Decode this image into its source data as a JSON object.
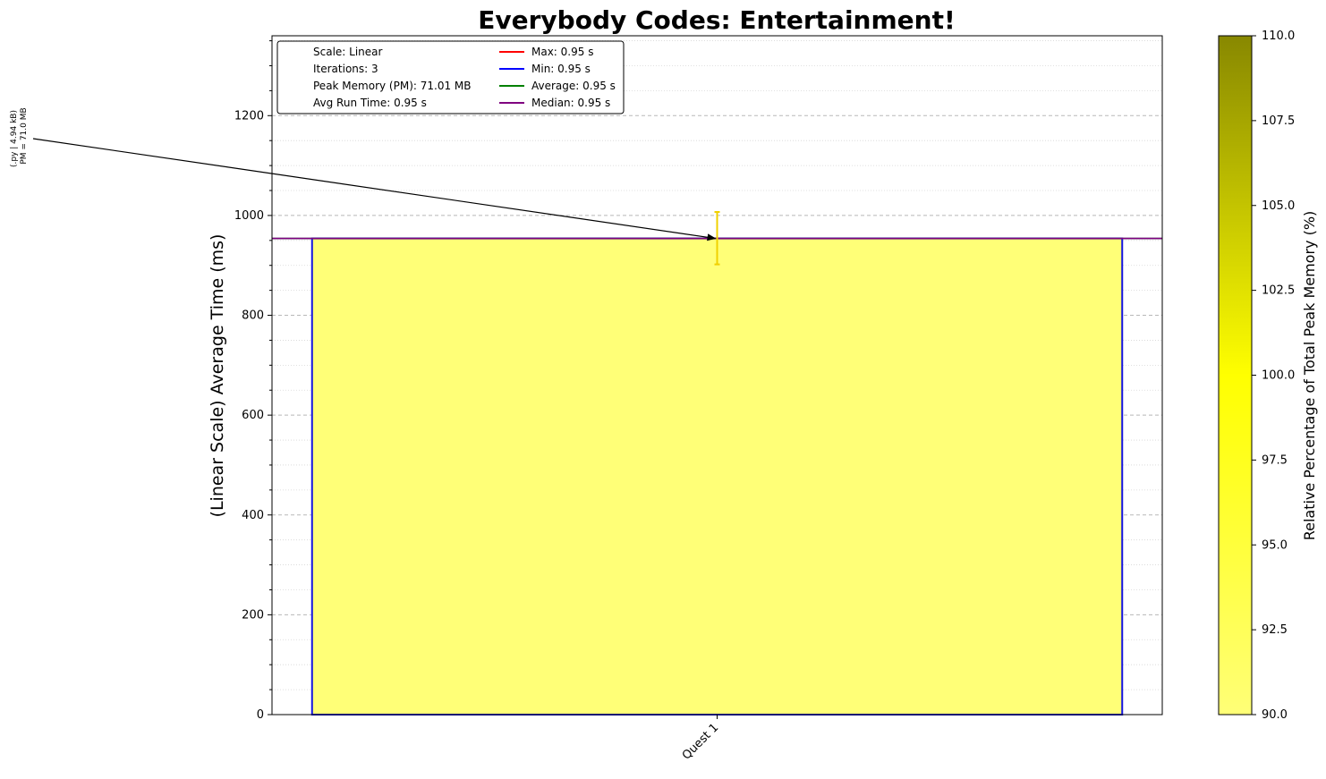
{
  "chart_data": {
    "type": "bar",
    "title": "Everybody Codes: Entertainment!",
    "ylabel": "(Linear Scale) Average Time (ms)",
    "xlabel": "",
    "categories": [
      "Quest 1"
    ],
    "values": [
      954
    ],
    "error": [
      {
        "low": 902,
        "high": 1007
      }
    ],
    "ylim": [
      0,
      1360
    ],
    "yticks": [
      0,
      200,
      400,
      600,
      800,
      1000,
      1200
    ],
    "yminor_step": 50,
    "grid": true,
    "bar_fill": "#ffff77",
    "bar_edge": "#1515e0",
    "error_color": "#f0d000",
    "reference_lines": [
      {
        "name": "Max",
        "value": 954,
        "color": "#ff0000"
      },
      {
        "name": "Min",
        "value": 954,
        "color": "#0000ff"
      },
      {
        "name": "Average",
        "value": 954,
        "color": "#008000"
      },
      {
        "name": "Median",
        "value": 954,
        "color": "#800080"
      }
    ],
    "annotation": {
      "lines": [
        "(.py | 4.94 kB)",
        "PM = 71.0 MB"
      ],
      "target_x": "Quest 1",
      "target_y": 954
    },
    "legend": {
      "placement": "upper-left",
      "info": [
        "Scale: Linear",
        "Iterations: 3",
        "Peak Memory (PM): 71.01 MB",
        "Avg Run Time: 0.95 s"
      ],
      "entries": [
        {
          "label": "Max: 0.95 s",
          "color": "#ff0000"
        },
        {
          "label": "Min: 0.95 s",
          "color": "#0000ff"
        },
        {
          "label": "Average: 0.95 s",
          "color": "#008000"
        },
        {
          "label": "Median: 0.95 s",
          "color": "#800080"
        }
      ]
    },
    "colorbar": {
      "label": "Relative Percentage of Total Peak Memory (%)",
      "range": [
        90.0,
        110.0
      ],
      "ticks": [
        "90.0",
        "92.5",
        "95.0",
        "97.5",
        "100.0",
        "102.5",
        "105.0",
        "107.5",
        "110.0"
      ],
      "colors": [
        "#ffff77",
        "#ffff00",
        "#888800"
      ]
    }
  }
}
